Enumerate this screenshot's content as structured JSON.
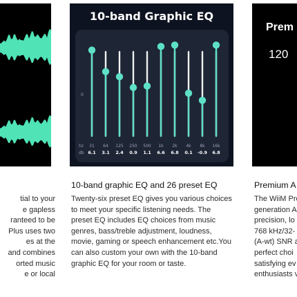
{
  "cards": {
    "left": {
      "text_lines": [
        "tial to your",
        "e gapless",
        "ranteed to be",
        "Plus uses two",
        "es at the",
        "and combines",
        "orted music",
        "e or local"
      ],
      "colors": {
        "waveform": "#4fe3b5",
        "background": "#000000"
      }
    },
    "center": {
      "image_title": "10-band Graphic EQ",
      "heading": "10-band graphic EQ and 26 preset EQ",
      "text_lines": [
        "Twenty-six preset EQ gives you various choices",
        "to meet your specific listening needs. The",
        "preset EQ includes EQ choices from music",
        "genres, bass/treble adjustment, loudness,",
        "movie, gaming or speech enhancement etc.You",
        "can also custom your own with the 10-band",
        "graphic EQ for your room or taste."
      ],
      "eq": {
        "zero_label": "0",
        "hz_label": "hz",
        "db_label": "db",
        "frequencies": [
          "31",
          "64",
          "125",
          "250",
          "500",
          "1k",
          "2k",
          "4k",
          "8k",
          "16k"
        ],
        "gain_labels": [
          "6.1",
          "3.1",
          "2.4",
          "0.9",
          "1.1",
          "6.6",
          "6.8",
          "0.1",
          "-0.9",
          "6.8"
        ],
        "gains": [
          6.1,
          3.1,
          2.4,
          0.9,
          1.1,
          6.6,
          6.8,
          0.1,
          -0.9,
          6.8
        ],
        "colors": {
          "accent": "#5de0c6",
          "track": "#f2f2f2",
          "panel": "#1e2535",
          "background": "#0d1320",
          "label": "#9aa3b5"
        }
      }
    },
    "right": {
      "image_title": "Prem",
      "image_number": "120",
      "heading": "Premium A",
      "text_lines": [
        "The WiiM Pro",
        "generation A",
        "precision, lo",
        "768 kHz/32-",
        "(A-wt) SNR a",
        "perfect choi",
        "satisfying ev",
        "enthusiasts v"
      ],
      "colors": {
        "waveform_start": "#e0339a",
        "waveform_end": "#8a3bd8"
      }
    }
  }
}
